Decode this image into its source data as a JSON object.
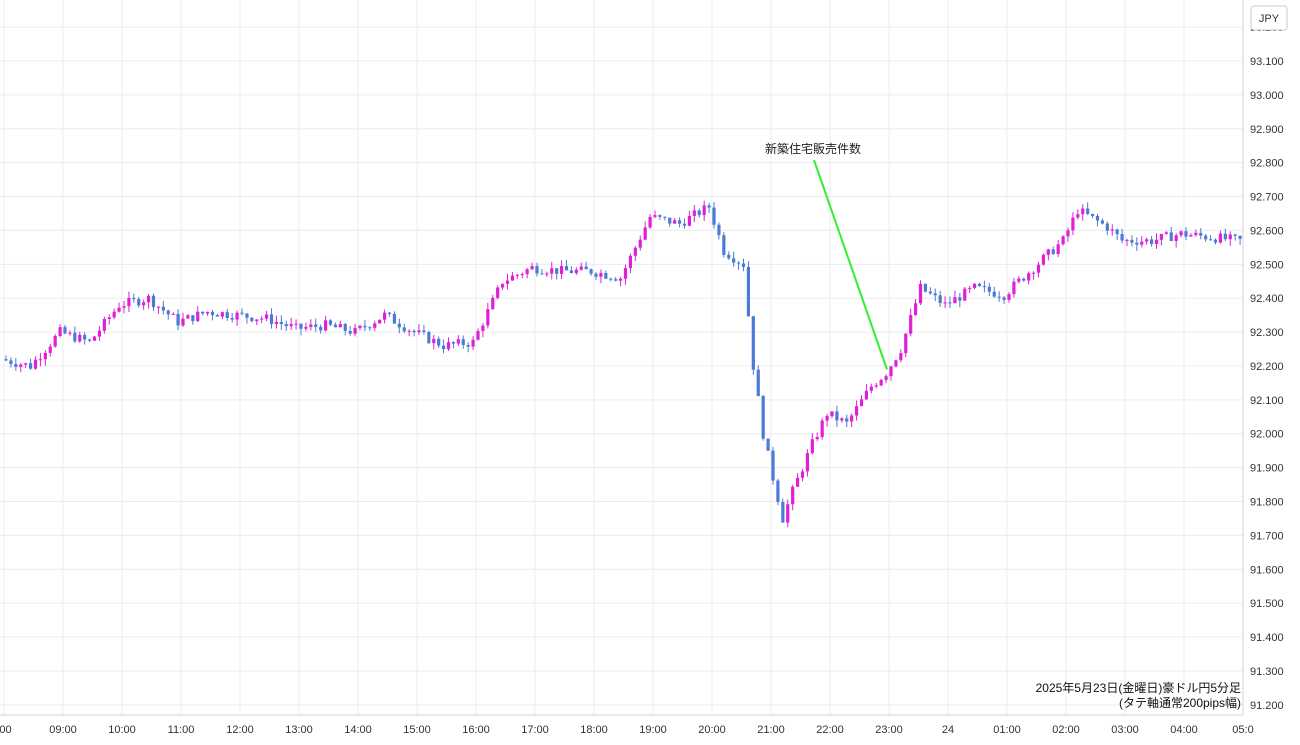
{
  "chart_data": {
    "type": "candlestick",
    "currency_badge": "JPY",
    "caption_line1": "2025年5月23日(金曜日)豪ドル円5分足",
    "caption_line2": "(タテ軸通常200pips幅)",
    "annotation": {
      "text": "新築住宅販売件数",
      "time": "23:00",
      "price": 92.19
    },
    "y_range": [
      91.17,
      93.28
    ],
    "y_ticks": [
      93.2,
      93.1,
      93.0,
      92.9,
      92.8,
      92.7,
      92.6,
      92.5,
      92.4,
      92.3,
      92.2,
      92.1,
      92.0,
      91.9,
      91.8,
      91.7,
      91.6,
      91.5,
      91.4,
      91.3,
      91.2
    ],
    "y_tick_labels": [
      "93.200",
      "93.100",
      "93.000",
      "92.900",
      "92.800",
      "92.700",
      "92.600",
      "92.500",
      "92.400",
      "92.300",
      "92.200",
      "92.100",
      "92.000",
      "91.900",
      "91.800",
      "91.700",
      "91.600",
      "91.500",
      "91.400",
      "91.300",
      "91.200"
    ],
    "x_tick_labels": [
      ":00",
      "09:00",
      "10:00",
      "11:00",
      "12:00",
      "13:00",
      "14:00",
      "15:00",
      "16:00",
      "17:00",
      "18:00",
      "19:00",
      "20:00",
      "21:00",
      "22:00",
      "23:00",
      "24",
      "01:00",
      "02:00",
      "03:00",
      "04:00",
      "05:0"
    ],
    "candle_interval": "5分",
    "colors": {
      "up": "#e020d8",
      "down": "#4a7bd6",
      "annotation_line": "#33ee33"
    },
    "path_keypoints": [
      {
        "t": "08:00",
        "p": 92.22
      },
      {
        "t": "08:30",
        "p": 92.2
      },
      {
        "t": "09:00",
        "p": 92.3
      },
      {
        "t": "09:30",
        "p": 92.27
      },
      {
        "t": "10:00",
        "p": 92.38
      },
      {
        "t": "10:30",
        "p": 92.4
      },
      {
        "t": "11:00",
        "p": 92.33
      },
      {
        "t": "11:30",
        "p": 92.36
      },
      {
        "t": "12:00",
        "p": 92.35
      },
      {
        "t": "12:30",
        "p": 92.34
      },
      {
        "t": "13:00",
        "p": 92.31
      },
      {
        "t": "13:30",
        "p": 92.32
      },
      {
        "t": "14:00",
        "p": 92.3
      },
      {
        "t": "14:30",
        "p": 92.35
      },
      {
        "t": "15:00",
        "p": 92.3
      },
      {
        "t": "15:30",
        "p": 92.26
      },
      {
        "t": "16:00",
        "p": 92.27
      },
      {
        "t": "16:30",
        "p": 92.45
      },
      {
        "t": "17:00",
        "p": 92.49
      },
      {
        "t": "17:30",
        "p": 92.48
      },
      {
        "t": "18:00",
        "p": 92.48
      },
      {
        "t": "18:30",
        "p": 92.46
      },
      {
        "t": "19:00",
        "p": 92.64
      },
      {
        "t": "19:30",
        "p": 92.62
      },
      {
        "t": "20:00",
        "p": 92.67
      },
      {
        "t": "20:15",
        "p": 92.54
      },
      {
        "t": "20:35",
        "p": 92.5
      },
      {
        "t": "20:45",
        "p": 92.2
      },
      {
        "t": "20:55",
        "p": 92.0
      },
      {
        "t": "21:05",
        "p": 91.87
      },
      {
        "t": "21:15",
        "p": 91.75
      },
      {
        "t": "21:25",
        "p": 91.83
      },
      {
        "t": "21:45",
        "p": 91.97
      },
      {
        "t": "22:00",
        "p": 92.06
      },
      {
        "t": "22:20",
        "p": 92.03
      },
      {
        "t": "22:45",
        "p": 92.14
      },
      {
        "t": "23:00",
        "p": 92.18
      },
      {
        "t": "23:15",
        "p": 92.25
      },
      {
        "t": "23:35",
        "p": 92.43
      },
      {
        "t": "24:00",
        "p": 92.38
      },
      {
        "t": "24:30",
        "p": 92.43
      },
      {
        "t": "25:00",
        "p": 92.41
      },
      {
        "t": "25:30",
        "p": 92.49
      },
      {
        "t": "26:00",
        "p": 92.57
      },
      {
        "t": "26:15",
        "p": 92.66
      },
      {
        "t": "26:45",
        "p": 92.61
      },
      {
        "t": "27:00",
        "p": 92.57
      },
      {
        "t": "27:30",
        "p": 92.57
      },
      {
        "t": "28:00",
        "p": 92.59
      },
      {
        "t": "28:30",
        "p": 92.58
      },
      {
        "t": "29:00",
        "p": 92.57
      }
    ]
  }
}
